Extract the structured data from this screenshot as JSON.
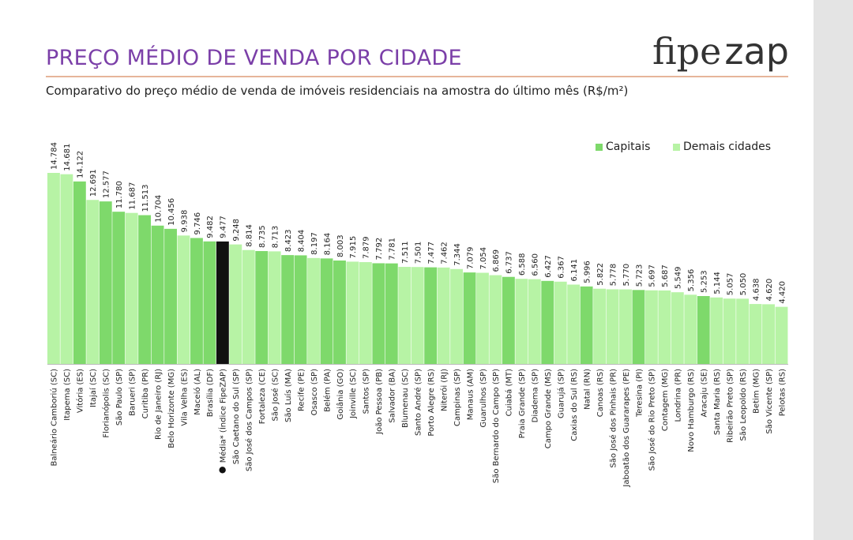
{
  "header": {
    "title": "PREÇO MÉDIO DE VENDA POR CIDADE",
    "subtitle": "Comparativo do preço médio de venda de imóveis residenciais na amostra do último mês (R$/m²)",
    "logo_part1": "fipe",
    "logo_part2": "zap"
  },
  "legend": {
    "capitais": "Capitais",
    "demais": "Demais cidades"
  },
  "colors": {
    "capital": "#7ed96b",
    "demais": "#b7f3a5",
    "media": "#111111",
    "title": "#7b3fa8"
  },
  "chart_data": {
    "type": "bar",
    "title": "PREÇO MÉDIO DE VENDA POR CIDADE",
    "ylabel": "R$/m²",
    "ylim": [
      0,
      15000
    ],
    "grid": false,
    "legend_position": "top-right",
    "categories": [
      "Balneário Camboriú (SC)",
      "Itapema (SC)",
      "Vitória (ES)",
      "Itajaí (SC)",
      "Florianópolis (SC)",
      "São Paulo (SP)",
      "Barueri (SP)",
      "Curitiba (PR)",
      "Rio de Janeiro (RJ)",
      "Belo Horizonte (MG)",
      "Vila Velha (ES)",
      "Maceió (AL)",
      "Brasília (DF)",
      "Média* (Índice FipeZAP)",
      "São Caetano do Sul (SP)",
      "São José dos Campos (SP)",
      "Fortaleza (CE)",
      "São José (SC)",
      "São Luís (MA)",
      "Recife (PE)",
      "Osasco (SP)",
      "Belém (PA)",
      "Goiânia (GO)",
      "Joinville (SC)",
      "Santos (SP)",
      "João Pessoa (PB)",
      "Salvador (BA)",
      "Blumenau (SC)",
      "Santo André (SP)",
      "Porto Alegre (RS)",
      "Niterói (RJ)",
      "Campinas (SP)",
      "Manaus (AM)",
      "Guarulhos (SP)",
      "São Bernardo do Campo (SP)",
      "Cuiabá (MT)",
      "Praia Grande (SP)",
      "Diadema (SP)",
      "Campo Grande (MS)",
      "Guarujá (SP)",
      "Caxias do Sul (RS)",
      "Natal (RN)",
      "Canoas (RS)",
      "São José dos Pinhais (PR)",
      "Jaboatão dos Guararapes (PE)",
      "Teresina (PI)",
      "São José do Rio Preto (SP)",
      "Contagem (MG)",
      "Londrina (PR)",
      "Novo Hamburgo (RS)",
      "Aracaju (SE)",
      "Santa Maria (RS)",
      "Ribeirão Preto (SP)",
      "São Leopoldo (RS)",
      "Betim (MG)",
      "São Vicente (SP)",
      "Pelotas (RS)"
    ],
    "value_labels": [
      "14.784",
      "14.681",
      "14.122",
      "12.691",
      "12.577",
      "11.780",
      "11.687",
      "11.513",
      "10.704",
      "10.456",
      "9.938",
      "9.746",
      "9.482",
      "9.477",
      "9.248",
      "8.814",
      "8.735",
      "8.713",
      "8.423",
      "8.404",
      "8.197",
      "8.164",
      "8.003",
      "7.915",
      "7.879",
      "7.792",
      "7.781",
      "7.511",
      "7.501",
      "7.477",
      "7.462",
      "7.344",
      "7.079",
      "7.054",
      "6.869",
      "6.737",
      "6.588",
      "6.560",
      "6.427",
      "6.367",
      "6.141",
      "5.996",
      "5.822",
      "5.778",
      "5.770",
      "5.723",
      "5.697",
      "5.687",
      "5.549",
      "5.356",
      "5.253",
      "5.144",
      "5.057",
      "5.050",
      "4.638",
      "4.620",
      "4.420"
    ],
    "values": [
      14784,
      14681,
      14122,
      12691,
      12577,
      11780,
      11687,
      11513,
      10704,
      10456,
      9938,
      9746,
      9482,
      9477,
      9248,
      8814,
      8735,
      8713,
      8423,
      8404,
      8197,
      8164,
      8003,
      7915,
      7879,
      7792,
      7781,
      7511,
      7501,
      7477,
      7462,
      7344,
      7079,
      7054,
      6869,
      6737,
      6588,
      6560,
      6427,
      6367,
      6141,
      5996,
      5822,
      5778,
      5770,
      5723,
      5697,
      5687,
      5549,
      5356,
      5253,
      5144,
      5057,
      5050,
      4638,
      4620,
      4420
    ],
    "groups": [
      "demais",
      "demais",
      "capital",
      "demais",
      "capital",
      "capital",
      "demais",
      "capital",
      "capital",
      "capital",
      "demais",
      "capital",
      "capital",
      "media",
      "demais",
      "demais",
      "capital",
      "demais",
      "capital",
      "capital",
      "demais",
      "capital",
      "capital",
      "demais",
      "demais",
      "capital",
      "capital",
      "demais",
      "demais",
      "capital",
      "demais",
      "demais",
      "capital",
      "demais",
      "demais",
      "capital",
      "demais",
      "demais",
      "capital",
      "demais",
      "demais",
      "capital",
      "demais",
      "demais",
      "demais",
      "capital",
      "demais",
      "demais",
      "demais",
      "demais",
      "capital",
      "demais",
      "demais",
      "demais",
      "demais",
      "demais",
      "demais"
    ]
  }
}
